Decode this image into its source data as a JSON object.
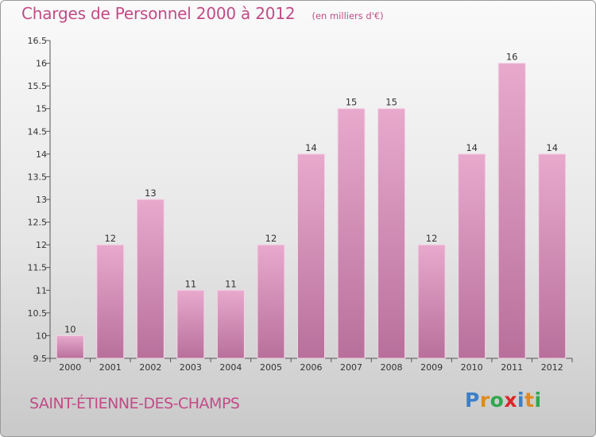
{
  "header": {
    "title": "Charges de Personnel 2000 à 2012",
    "unit": "(en milliers d'€)"
  },
  "footer": {
    "commune": "SAINT-ÉTIENNE-DES-CHAMPS",
    "logo_letters": [
      {
        "ch": "P",
        "color": "#3d7fc7"
      },
      {
        "ch": "r",
        "color": "#e08a1e"
      },
      {
        "ch": "o",
        "color": "#2fa84f"
      },
      {
        "ch": "x",
        "color": "#d9262c"
      },
      {
        "ch": "i",
        "color": "#3d7fc7"
      },
      {
        "ch": "t",
        "color": "#e08a1e"
      },
      {
        "ch": "i",
        "color": "#2fa84f"
      }
    ]
  },
  "colors": {
    "accent": "#c24b86",
    "bar_light": "#e8a9cd",
    "bar_dark": "#b8709b"
  },
  "chart_data": {
    "type": "bar",
    "title": "Charges de Personnel 2000 à 2012",
    "xlabel": "",
    "ylabel": "",
    "categories": [
      "2000",
      "2001",
      "2002",
      "2003",
      "2004",
      "2005",
      "2006",
      "2007",
      "2008",
      "2009",
      "2010",
      "2011",
      "2012"
    ],
    "values": [
      10,
      12,
      13,
      11,
      11,
      12,
      14,
      15,
      15,
      12,
      14,
      16,
      14
    ],
    "data_labels": [
      "10",
      "12",
      "13",
      "11",
      "11",
      "12",
      "14",
      "15",
      "15",
      "12",
      "14",
      "16",
      "14"
    ],
    "ylim": [
      9.5,
      16.5
    ],
    "yticks": [
      "9.5",
      "10",
      "10.5",
      "11",
      "11.5",
      "12",
      "12.5",
      "13",
      "13.5",
      "14",
      "14.5",
      "15",
      "15.5",
      "16",
      "16.5"
    ],
    "grid": false
  }
}
